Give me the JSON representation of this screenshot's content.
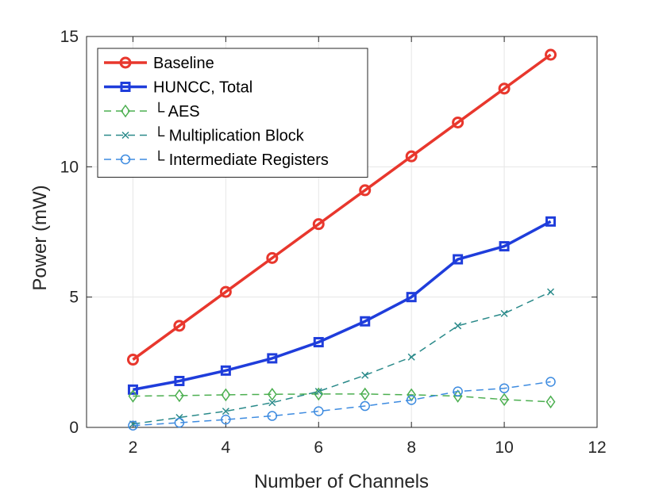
{
  "chart_data": {
    "type": "line",
    "title": "",
    "xlabel": "Number of Channels",
    "ylabel": "Power (mW)",
    "xlim": [
      1,
      12
    ],
    "ylim": [
      0,
      15
    ],
    "xticks": [
      2,
      4,
      6,
      8,
      10,
      12
    ],
    "yticks": [
      0,
      5,
      10,
      15
    ],
    "grid": true,
    "legend_position": "top-left",
    "x": [
      2,
      3,
      4,
      5,
      6,
      7,
      8,
      9,
      10,
      11
    ],
    "series": [
      {
        "name": "Baseline",
        "color": "#e8372d",
        "line": "solid",
        "marker": "circle",
        "values": [
          2.6,
          3.9,
          5.2,
          6.5,
          7.8,
          9.1,
          10.4,
          11.7,
          13.0,
          14.3
        ]
      },
      {
        "name": "HUNCC, Total",
        "color": "#1f3ddb",
        "line": "solid",
        "marker": "square",
        "values": [
          1.45,
          1.78,
          2.18,
          2.65,
          3.27,
          4.07,
          5.0,
          6.45,
          6.95,
          7.9
        ]
      },
      {
        "name": "└ AES",
        "color": "#4caf50",
        "line": "dashed",
        "marker": "diamond",
        "values": [
          1.2,
          1.22,
          1.25,
          1.27,
          1.28,
          1.28,
          1.25,
          1.2,
          1.07,
          0.98
        ]
      },
      {
        "name": "└ Multiplication Block",
        "color": "#2a8a8a",
        "line": "dashed",
        "marker": "x",
        "values": [
          0.13,
          0.38,
          0.62,
          0.95,
          1.38,
          2.0,
          2.7,
          3.9,
          4.37,
          5.2
        ]
      },
      {
        "name": "└ Intermediate Registers",
        "color": "#3d8be0",
        "line": "dashed",
        "marker": "circle-open",
        "values": [
          0.07,
          0.18,
          0.3,
          0.44,
          0.62,
          0.82,
          1.05,
          1.38,
          1.5,
          1.75
        ]
      }
    ]
  }
}
